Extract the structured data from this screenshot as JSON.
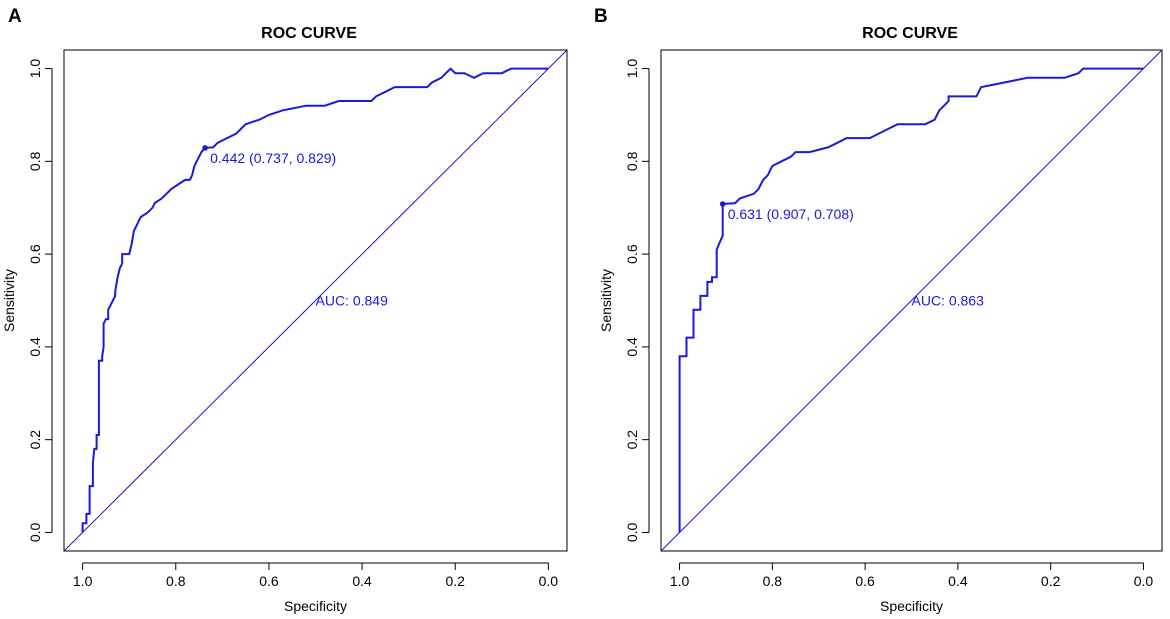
{
  "chart_data": [
    {
      "type": "line",
      "panel": "A",
      "title": "ROC CURVE",
      "xlabel": "Specificity",
      "ylabel": "Sensitivity",
      "xlim": [
        1.0,
        0.0
      ],
      "ylim": [
        0.0,
        1.0
      ],
      "x_ticks": [
        "1.0",
        "0.8",
        "0.6",
        "0.4",
        "0.2",
        "0.0"
      ],
      "y_ticks": [
        "0.0",
        "0.2",
        "0.4",
        "0.6",
        "0.8",
        "1.0"
      ],
      "color": "#1a1adb",
      "auc_label": "AUC: 0.849",
      "best_point": {
        "specificity": 0.737,
        "sensitivity": 0.829,
        "label": "0.442 (0.737, 0.829)"
      },
      "series": [
        {
          "name": "ROC",
          "points": [
            [
              1.0,
              0.0
            ],
            [
              1.0,
              0.02
            ],
            [
              0.992,
              0.02
            ],
            [
              0.992,
              0.04
            ],
            [
              0.985,
              0.04
            ],
            [
              0.985,
              0.1
            ],
            [
              0.978,
              0.1
            ],
            [
              0.978,
              0.15
            ],
            [
              0.975,
              0.18
            ],
            [
              0.97,
              0.18
            ],
            [
              0.97,
              0.21
            ],
            [
              0.965,
              0.21
            ],
            [
              0.965,
              0.37
            ],
            [
              0.958,
              0.37
            ],
            [
              0.958,
              0.38
            ],
            [
              0.955,
              0.4
            ],
            [
              0.955,
              0.45
            ],
            [
              0.95,
              0.46
            ],
            [
              0.945,
              0.46
            ],
            [
              0.945,
              0.48
            ],
            [
              0.94,
              0.49
            ],
            [
              0.935,
              0.5
            ],
            [
              0.93,
              0.51
            ],
            [
              0.93,
              0.52
            ],
            [
              0.925,
              0.55
            ],
            [
              0.92,
              0.57
            ],
            [
              0.915,
              0.58
            ],
            [
              0.915,
              0.6
            ],
            [
              0.9,
              0.6
            ],
            [
              0.895,
              0.62
            ],
            [
              0.89,
              0.65
            ],
            [
              0.885,
              0.66
            ],
            [
              0.88,
              0.67
            ],
            [
              0.875,
              0.68
            ],
            [
              0.86,
              0.69
            ],
            [
              0.85,
              0.7
            ],
            [
              0.845,
              0.71
            ],
            [
              0.83,
              0.72
            ],
            [
              0.82,
              0.73
            ],
            [
              0.81,
              0.74
            ],
            [
              0.795,
              0.75
            ],
            [
              0.78,
              0.76
            ],
            [
              0.77,
              0.76
            ],
            [
              0.765,
              0.77
            ],
            [
              0.76,
              0.79
            ],
            [
              0.755,
              0.8
            ],
            [
              0.75,
              0.81
            ],
            [
              0.745,
              0.82
            ],
            [
              0.737,
              0.829
            ],
            [
              0.72,
              0.83
            ],
            [
              0.71,
              0.84
            ],
            [
              0.69,
              0.85
            ],
            [
              0.67,
              0.86
            ],
            [
              0.65,
              0.88
            ],
            [
              0.62,
              0.89
            ],
            [
              0.6,
              0.9
            ],
            [
              0.57,
              0.91
            ],
            [
              0.52,
              0.92
            ],
            [
              0.48,
              0.92
            ],
            [
              0.45,
              0.93
            ],
            [
              0.38,
              0.93
            ],
            [
              0.37,
              0.94
            ],
            [
              0.35,
              0.95
            ],
            [
              0.33,
              0.96
            ],
            [
              0.26,
              0.96
            ],
            [
              0.25,
              0.97
            ],
            [
              0.23,
              0.98
            ],
            [
              0.22,
              0.99
            ],
            [
              0.21,
              1.0
            ],
            [
              0.2,
              0.99
            ],
            [
              0.18,
              0.99
            ],
            [
              0.16,
              0.98
            ],
            [
              0.14,
              0.99
            ],
            [
              0.1,
              0.99
            ],
            [
              0.08,
              1.0
            ],
            [
              0.0,
              1.0
            ]
          ]
        }
      ]
    },
    {
      "type": "line",
      "panel": "B",
      "title": "ROC CURVE",
      "xlabel": "Specificity",
      "ylabel": "Sensitivity",
      "xlim": [
        1.0,
        0.0
      ],
      "ylim": [
        0.0,
        1.0
      ],
      "x_ticks": [
        "1.0",
        "0.8",
        "0.6",
        "0.4",
        "0.2",
        "0.0"
      ],
      "y_ticks": [
        "0.0",
        "0.2",
        "0.4",
        "0.6",
        "0.8",
        "1.0"
      ],
      "color": "#1a1adb",
      "auc_label": "AUC: 0.863",
      "best_point": {
        "specificity": 0.907,
        "sensitivity": 0.708,
        "label": "0.631 (0.907, 0.708)"
      },
      "series": [
        {
          "name": "ROC",
          "points": [
            [
              1.0,
              0.0
            ],
            [
              1.0,
              0.38
            ],
            [
              0.985,
              0.38
            ],
            [
              0.985,
              0.42
            ],
            [
              0.97,
              0.42
            ],
            [
              0.97,
              0.48
            ],
            [
              0.955,
              0.48
            ],
            [
              0.955,
              0.51
            ],
            [
              0.94,
              0.51
            ],
            [
              0.94,
              0.54
            ],
            [
              0.93,
              0.54
            ],
            [
              0.93,
              0.55
            ],
            [
              0.92,
              0.55
            ],
            [
              0.92,
              0.61
            ],
            [
              0.907,
              0.64
            ],
            [
              0.907,
              0.708
            ],
            [
              0.88,
              0.71
            ],
            [
              0.87,
              0.72
            ],
            [
              0.84,
              0.73
            ],
            [
              0.83,
              0.74
            ],
            [
              0.82,
              0.76
            ],
            [
              0.81,
              0.77
            ],
            [
              0.8,
              0.79
            ],
            [
              0.78,
              0.8
            ],
            [
              0.76,
              0.81
            ],
            [
              0.75,
              0.82
            ],
            [
              0.72,
              0.82
            ],
            [
              0.68,
              0.83
            ],
            [
              0.66,
              0.84
            ],
            [
              0.64,
              0.85
            ],
            [
              0.59,
              0.85
            ],
            [
              0.57,
              0.86
            ],
            [
              0.55,
              0.87
            ],
            [
              0.53,
              0.88
            ],
            [
              0.47,
              0.88
            ],
            [
              0.45,
              0.89
            ],
            [
              0.44,
              0.91
            ],
            [
              0.43,
              0.92
            ],
            [
              0.42,
              0.93
            ],
            [
              0.42,
              0.94
            ],
            [
              0.36,
              0.94
            ],
            [
              0.35,
              0.96
            ],
            [
              0.3,
              0.97
            ],
            [
              0.25,
              0.98
            ],
            [
              0.17,
              0.98
            ],
            [
              0.14,
              0.99
            ],
            [
              0.13,
              1.0
            ],
            [
              0.0,
              1.0
            ]
          ]
        }
      ]
    }
  ],
  "panels": [
    {
      "letter": "A"
    },
    {
      "letter": "B"
    }
  ]
}
